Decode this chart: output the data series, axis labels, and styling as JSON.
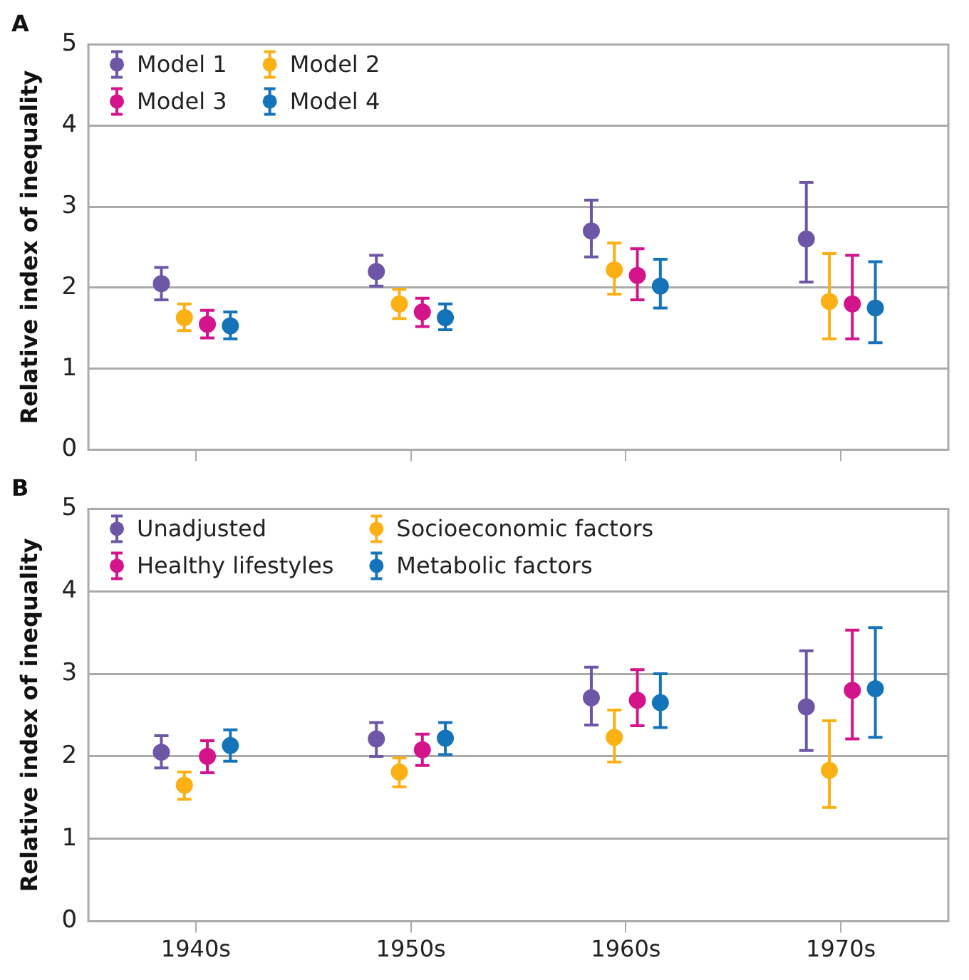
{
  "chart_data": [
    {
      "type": "scatter",
      "title": "A",
      "ylabel": "Relative index of inequality",
      "categories": [
        null,
        null,
        null,
        null
      ],
      "ylim": [
        0,
        5
      ],
      "yticks": [
        0,
        1,
        2,
        3,
        4,
        5
      ],
      "grid": "y",
      "legend": "top left",
      "marker": "circle",
      "tick_labels": "y",
      "series": [
        {
          "name": "Model 1",
          "color": "#6e56a6",
          "values": [
            2.05,
            2.2,
            2.7,
            2.6
          ],
          "errors": [
            [
              1.85,
              2.25
            ],
            [
              2.02,
              2.4
            ],
            [
              2.38,
              3.08
            ],
            [
              2.07,
              3.3
            ]
          ]
        },
        {
          "name": "Model 2",
          "color": "#fbb016",
          "values": [
            1.63,
            1.8,
            2.22,
            1.83
          ],
          "errors": [
            [
              1.47,
              1.8
            ],
            [
              1.62,
              1.98
            ],
            [
              1.92,
              2.55
            ],
            [
              1.37,
              2.42
            ]
          ]
        },
        {
          "name": "Model 3",
          "color": "#d4148b",
          "values": [
            1.55,
            1.7,
            2.15,
            1.8
          ],
          "errors": [
            [
              1.38,
              1.72
            ],
            [
              1.52,
              1.87
            ],
            [
              1.85,
              2.48
            ],
            [
              1.37,
              2.4
            ]
          ]
        },
        {
          "name": "Model 4",
          "color": "#1573b9",
          "values": [
            1.53,
            1.63,
            2.02,
            1.75
          ],
          "errors": [
            [
              1.37,
              1.7
            ],
            [
              1.48,
              1.8
            ],
            [
              1.75,
              2.35
            ],
            [
              1.32,
              2.32
            ]
          ]
        }
      ]
    },
    {
      "type": "scatter",
      "title": "B",
      "ylabel": "Relative index of inequality",
      "categories": [
        "1940s",
        "1950s",
        "1960s",
        "1970s"
      ],
      "ylim": [
        0,
        5
      ],
      "yticks": [
        0,
        1,
        2,
        3,
        4,
        5
      ],
      "grid": "y",
      "legend": "top left",
      "marker": "circle",
      "series": [
        {
          "name": "Unadjusted",
          "color": "#6e56a6",
          "values": [
            2.05,
            2.21,
            2.71,
            2.6
          ],
          "errors": [
            [
              1.86,
              2.25
            ],
            [
              2.0,
              2.41
            ],
            [
              2.38,
              3.08
            ],
            [
              2.07,
              3.28
            ]
          ]
        },
        {
          "name": "Socioeconomic factors",
          "color": "#fbb016",
          "values": [
            1.65,
            1.81,
            2.23,
            1.83
          ],
          "errors": [
            [
              1.48,
              1.81
            ],
            [
              1.63,
              1.98
            ],
            [
              1.93,
              2.56
            ],
            [
              1.38,
              2.43
            ]
          ]
        },
        {
          "name": "Healthy lifestyles",
          "color": "#d4148b",
          "values": [
            2.0,
            2.08,
            2.68,
            2.8
          ],
          "errors": [
            [
              1.8,
              2.19
            ],
            [
              1.89,
              2.27
            ],
            [
              2.37,
              3.05
            ],
            [
              2.21,
              3.53
            ]
          ]
        },
        {
          "name": "Metabolic factors",
          "color": "#1573b9",
          "values": [
            2.13,
            2.22,
            2.65,
            2.82
          ],
          "errors": [
            [
              1.94,
              2.32
            ],
            [
              2.02,
              2.41
            ],
            [
              2.35,
              3.0
            ],
            [
              2.23,
              3.56
            ]
          ]
        }
      ]
    }
  ]
}
